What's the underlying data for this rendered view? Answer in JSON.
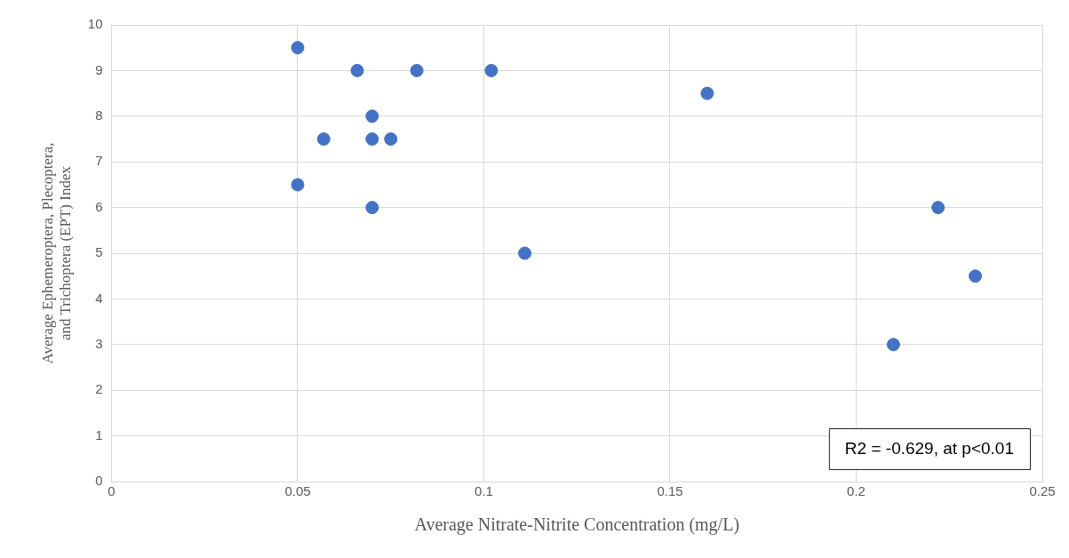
{
  "chart_data": {
    "type": "scatter",
    "xlabel": "Average Nitrate-Nitrite Concentration (mg/L)",
    "ylabel": "Average Ephemeroptera, Plecoptera, and Trichoptera (EPT) Index",
    "x": [
      0.05,
      0.066,
      0.082,
      0.102,
      0.07,
      0.057,
      0.07,
      0.075,
      0.05,
      0.07,
      0.111,
      0.16,
      0.222,
      0.232,
      0.21
    ],
    "values": [
      9.5,
      9,
      9,
      9,
      8,
      7.5,
      7.5,
      7.5,
      6.5,
      6,
      5,
      8.5,
      6,
      4.5,
      3
    ],
    "color": "#4472c4",
    "marker": "circle",
    "xlim": [
      0,
      0.25
    ],
    "xticks": [
      0,
      0.05,
      0.1,
      0.15,
      0.2,
      0.25
    ],
    "ylim": [
      0,
      10
    ],
    "yticks": [
      0,
      1,
      2,
      3,
      4,
      5,
      6,
      7,
      8,
      9,
      10
    ],
    "grid": true,
    "legend": false,
    "annotations": [
      "R2 = -0.629, at p<0.01"
    ]
  }
}
